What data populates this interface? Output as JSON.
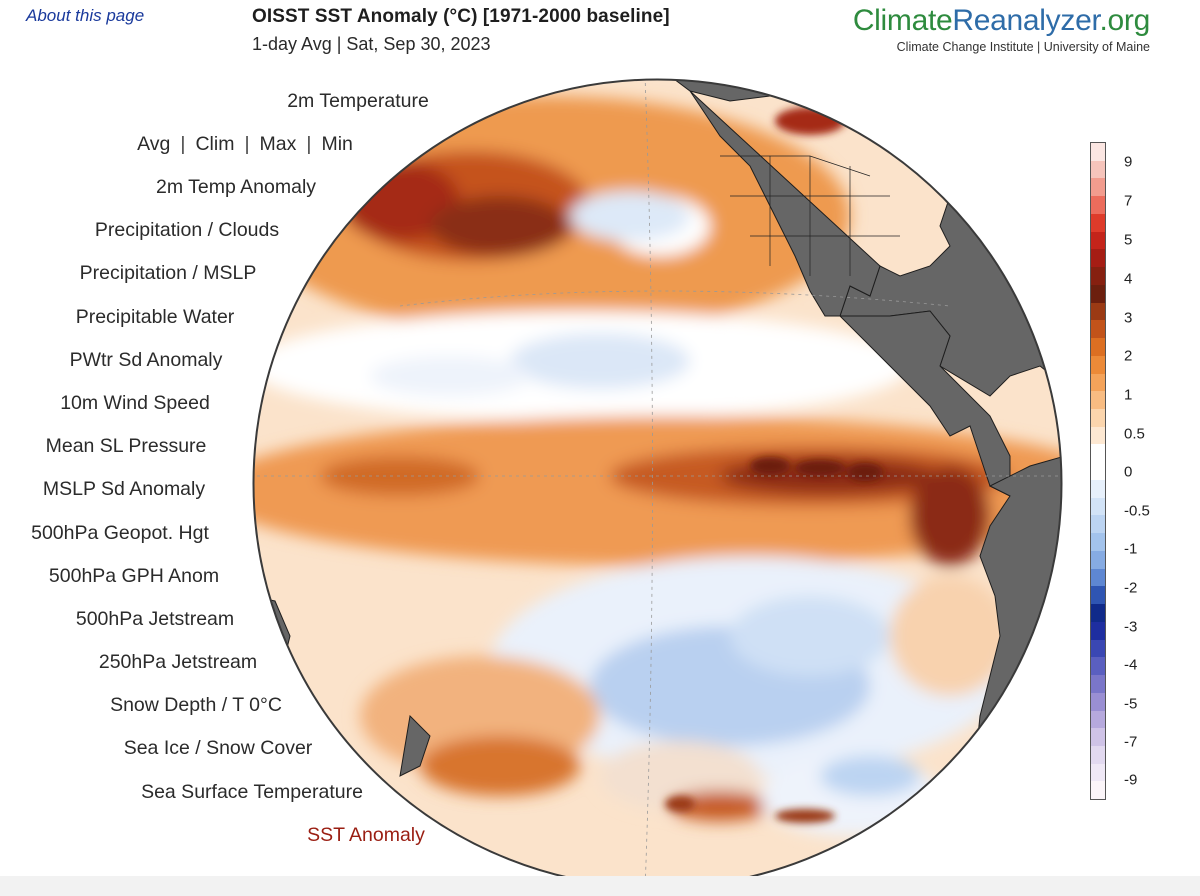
{
  "header": {
    "about_link": "About this page",
    "title": "OISST SST Anomaly (°C) [1971-2000 baseline]",
    "subtitle": "1-day Avg | Sat, Sep 30, 2023"
  },
  "brand": {
    "name_part1": "Climate",
    "name_part2": "Reanalyzer",
    "name_part3": ".org",
    "affiliation": "Climate Change Institute | University of Maine"
  },
  "menu": {
    "items": [
      {
        "label": "2m Temperature",
        "selected": false
      },
      {
        "label": "2m Temp Anomaly",
        "selected": false
      },
      {
        "label": "Precipitation / Clouds",
        "selected": false
      },
      {
        "label": "Precipitation / MSLP",
        "selected": false
      },
      {
        "label": "Precipitable Water",
        "selected": false
      },
      {
        "label": "PWtr Sd Anomaly",
        "selected": false
      },
      {
        "label": "10m Wind Speed",
        "selected": false
      },
      {
        "label": "Mean SL Pressure",
        "selected": false
      },
      {
        "label": "MSLP Sd Anomaly",
        "selected": false
      },
      {
        "label": "500hPa Geopot. Hgt",
        "selected": false
      },
      {
        "label": "500hPa GPH Anom",
        "selected": false
      },
      {
        "label": "500hPa Jetstream",
        "selected": false
      },
      {
        "label": "250hPa Jetstream",
        "selected": false
      },
      {
        "label": "Snow Depth / T 0°C",
        "selected": false
      },
      {
        "label": "Sea Ice / Snow Cover",
        "selected": false
      },
      {
        "label": "Sea Surface Temperature",
        "selected": false
      },
      {
        "label": "SST Anomaly",
        "selected": true
      }
    ],
    "temp_options": [
      "Avg",
      "Clim",
      "Max",
      "Min"
    ],
    "temp_separator": "|"
  },
  "legend": {
    "ticks": [
      "9",
      "7",
      "5",
      "4",
      "3",
      "2",
      "1",
      "0.5",
      "0",
      "-0.5",
      "-1",
      "-2",
      "-3",
      "-4",
      "-5",
      "-7",
      "-9"
    ],
    "colors": [
      "#fbe6e2",
      "#f6c4bb",
      "#f29c8e",
      "#ec6c5c",
      "#de3b2a",
      "#c4241a",
      "#a51d14",
      "#862010",
      "#6c1f0e",
      "#9b3a14",
      "#c2531a",
      "#dc6f22",
      "#ec8a38",
      "#f4a35a",
      "#f8bc82",
      "#fbd5ad",
      "#fde8d2",
      "#ffffff",
      "#ffffff",
      "#e7f0fb",
      "#d2e3f7",
      "#bcd4f2",
      "#a3c3ec",
      "#86abe3",
      "#5e87d2",
      "#2f55b2",
      "#102a8a",
      "#1e2ea0",
      "#3a47b3",
      "#5a5fc0",
      "#7a76c9",
      "#9a8fd3",
      "#b6a9dd",
      "#cfc3e7",
      "#e2d9f0",
      "#efe8f6",
      "#fbf5f9"
    ],
    "accent_selected": "#9a1e12",
    "land_color": "#666666"
  }
}
